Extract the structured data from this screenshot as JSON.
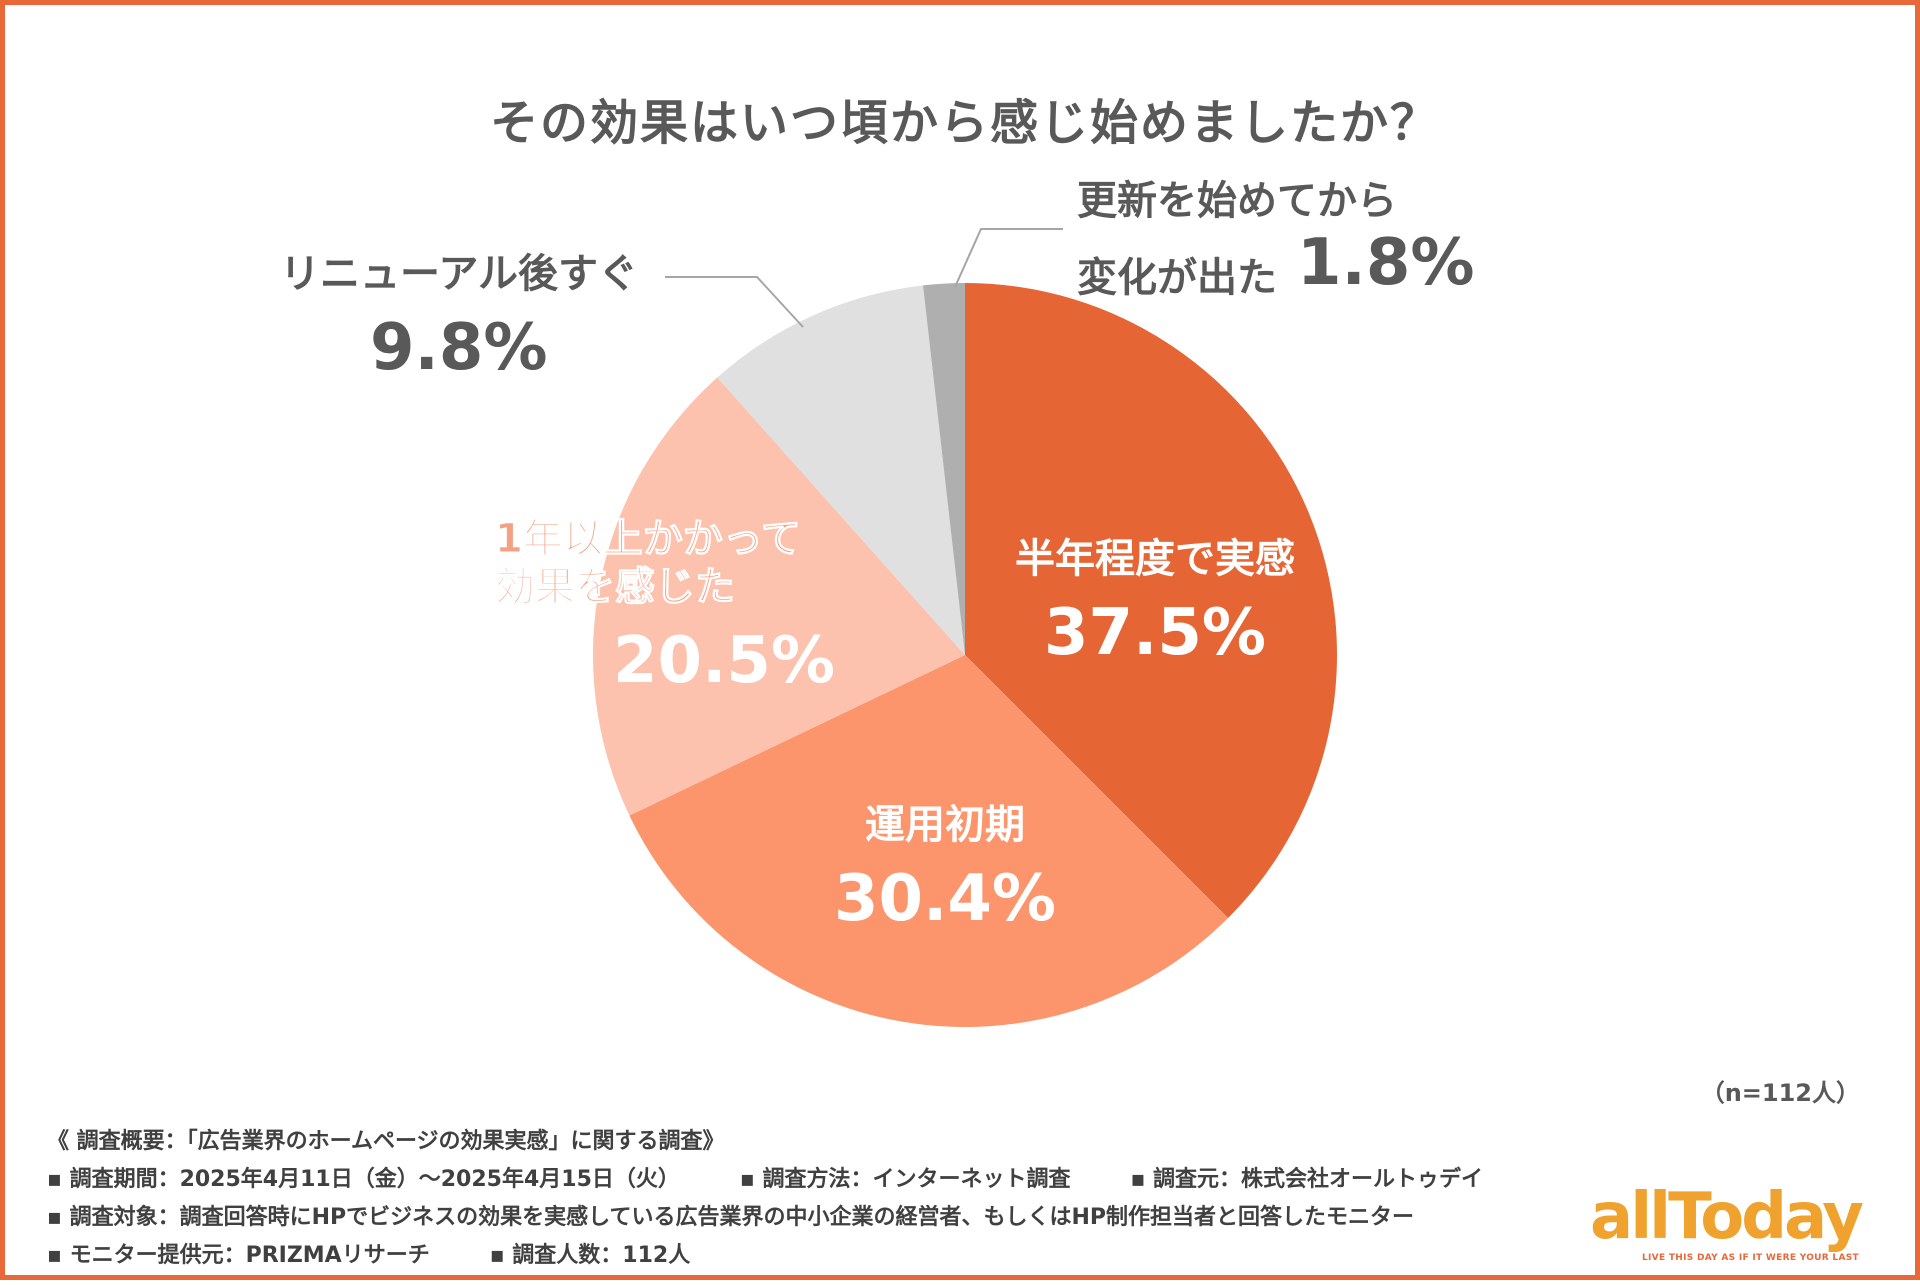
{
  "chart_data": {
    "type": "pie",
    "title": "その効果はいつ頃から感じ始めましたか？",
    "slices": [
      {
        "label": "半年程度で実感",
        "value": 37.5,
        "pct_label": "37.5%",
        "color": "#E66535"
      },
      {
        "label": "運用初期",
        "value": 30.4,
        "pct_label": "30.4%",
        "color": "#FC956C"
      },
      {
        "label": "1年以上かかって効果を感じた",
        "label_lines": [
          "1年以上かかって",
          "効果を感じた"
        ],
        "value": 20.5,
        "pct_label": "20.5%",
        "color": "#FCC2AD"
      },
      {
        "label": "リニューアル後すぐ",
        "value": 9.8,
        "pct_label": "9.8%",
        "color": "#E0E0E0"
      },
      {
        "label": "更新を始めてから変化が出た",
        "label_lines": [
          "更新を始めてから",
          "変化が出た"
        ],
        "value": 1.8,
        "pct_label": "1.8%",
        "color": "#AFAFAF"
      }
    ],
    "start_angle": "12 o'clock",
    "direction": "clockwise"
  },
  "sample_note": "（n=112人）",
  "survey_notes": {
    "line1": "《 調査概要：「広告業界のホームページの効果実感」に関する調査》",
    "period": "▪ 調査期間：2025年4月11日（金）～2025年4月15日（火）",
    "method": "▪ 調査方法：インターネット調査",
    "source": "▪ 調査元：株式会社オールトゥデイ",
    "target": "▪ 調査対象：調査回答時にHPでビジネスの効果を実感している広告業界の中小企業の経営者、もしくはHP制作担当者と回答したモニター",
    "provider": "▪ モニター提供元：PRIZMAリサーチ",
    "count": "▪ 調査人数：112人"
  },
  "logo": {
    "text": "allToday",
    "tagline": "LIVE THIS DAY AS IF IT WERE YOUR LAST"
  }
}
